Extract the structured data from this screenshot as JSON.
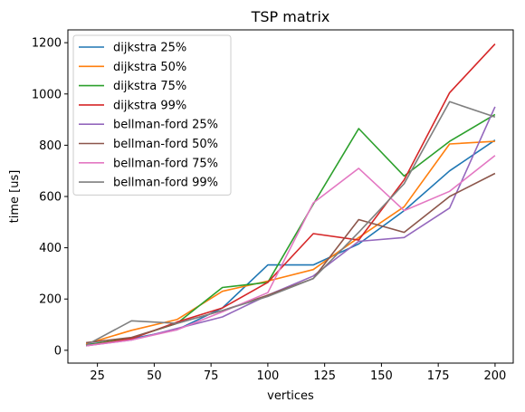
{
  "chart_data": {
    "type": "line",
    "title": "TSP matrix",
    "xlabel": "vertices",
    "ylabel": "time [us]",
    "xlim": [
      12,
      208
    ],
    "ylim": [
      -50,
      1250
    ],
    "xticks": [
      25,
      50,
      75,
      100,
      125,
      150,
      175,
      200
    ],
    "yticks": [
      0,
      200,
      400,
      600,
      800,
      1000,
      1200
    ],
    "grid": false,
    "legend_position": "upper-left",
    "x": [
      20,
      40,
      60,
      80,
      100,
      120,
      140,
      160,
      180,
      200
    ],
    "series": [
      {
        "name": "dijkstra 25%",
        "color": "#1f77b4",
        "values": [
          22,
          45,
          80,
          165,
          333,
          333,
          415,
          545,
          700,
          820
        ]
      },
      {
        "name": "dijkstra 50%",
        "color": "#ff7f0e",
        "values": [
          25,
          78,
          120,
          230,
          270,
          315,
          440,
          560,
          805,
          815
        ]
      },
      {
        "name": "dijkstra 75%",
        "color": "#2ca02c",
        "values": [
          20,
          48,
          105,
          245,
          265,
          570,
          865,
          680,
          815,
          920
        ]
      },
      {
        "name": "dijkstra 99%",
        "color": "#d62728",
        "values": [
          18,
          45,
          110,
          165,
          265,
          455,
          430,
          665,
          1005,
          1195
        ]
      },
      {
        "name": "bellman-ford 25%",
        "color": "#9467bd",
        "values": [
          18,
          40,
          85,
          130,
          215,
          290,
          425,
          440,
          555,
          950
        ]
      },
      {
        "name": "bellman-ford 50%",
        "color": "#8c564b",
        "values": [
          30,
          50,
          105,
          155,
          215,
          280,
          510,
          460,
          600,
          690
        ]
      },
      {
        "name": "bellman-ford 75%",
        "color": "#e377c2",
        "values": [
          18,
          40,
          80,
          150,
          225,
          575,
          710,
          545,
          620,
          760
        ]
      },
      {
        "name": "bellman-ford 99%",
        "color": "#7f7f7f",
        "values": [
          20,
          115,
          105,
          155,
          210,
          280,
          460,
          650,
          970,
          910
        ]
      }
    ]
  }
}
